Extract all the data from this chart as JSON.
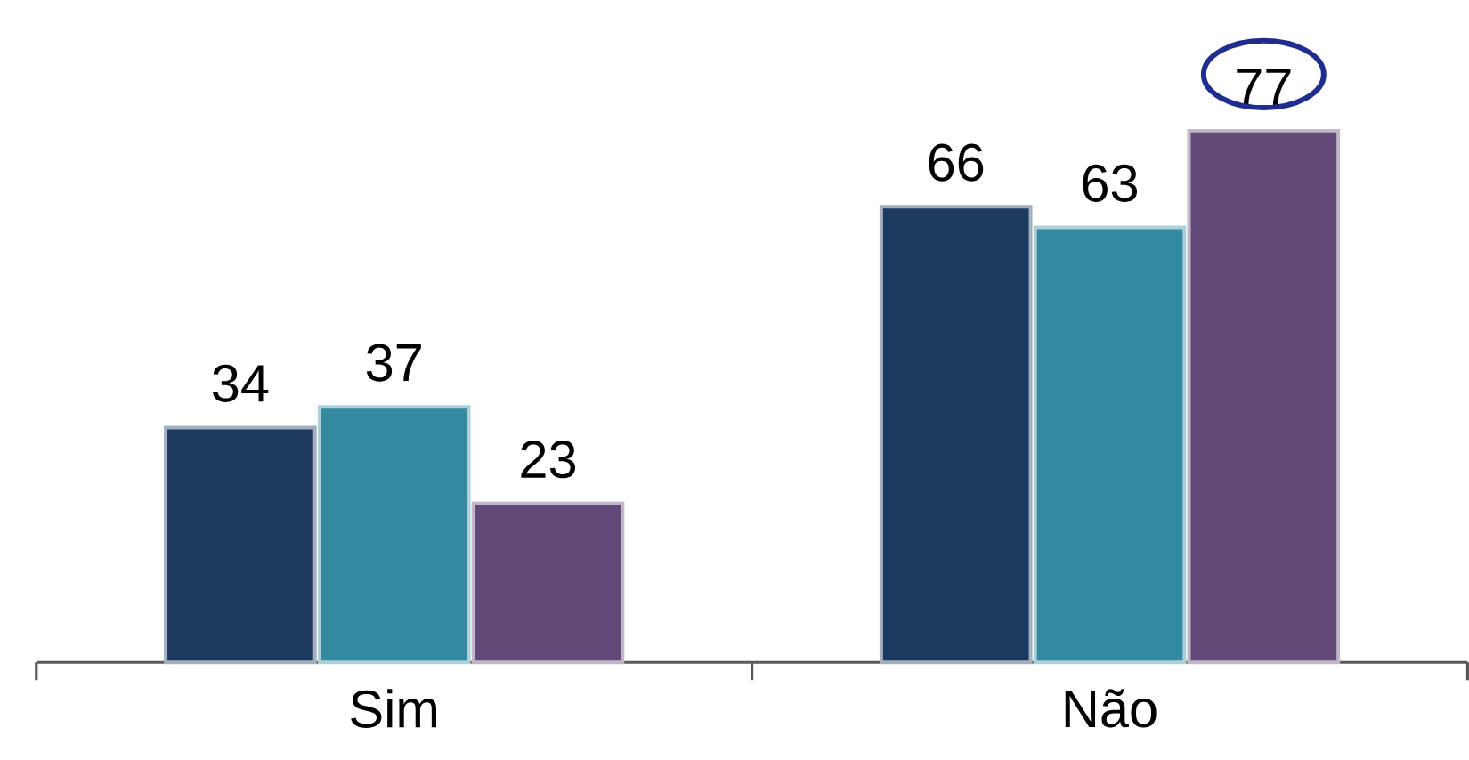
{
  "chart_data": {
    "type": "bar",
    "categories": [
      "Sim",
      "Não"
    ],
    "series": [
      {
        "color": "#1b3a5e",
        "values": [
          34,
          66
        ]
      },
      {
        "color": "#338aa0",
        "values": [
          37,
          63
        ]
      },
      {
        "color": "#614a78",
        "values": [
          23,
          77
        ]
      }
    ],
    "data_labels": true,
    "tick_labels": "x"
  }
}
